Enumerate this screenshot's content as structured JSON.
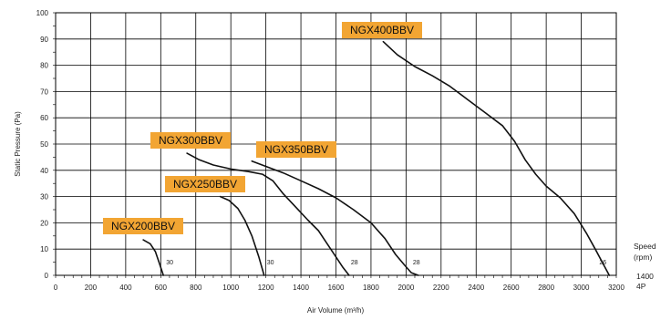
{
  "chart_data": {
    "type": "line",
    "title": "",
    "xlabel": "Air Volume (m³/h)",
    "ylabel": "Static Pressure (Pa)",
    "xlim": [
      0,
      3200
    ],
    "ylim": [
      0,
      100
    ],
    "x_ticks": [
      0,
      200,
      400,
      600,
      800,
      1000,
      1200,
      1400,
      1600,
      1800,
      2000,
      2200,
      2400,
      2600,
      2800,
      3000,
      3200
    ],
    "y_ticks": [
      0,
      10,
      20,
      30,
      40,
      50,
      60,
      70,
      80,
      90,
      100
    ],
    "grid": true,
    "label_color": "#F2A533",
    "line_color": "#111111",
    "series": [
      {
        "name": "NGX200BBV",
        "speed_label": "30",
        "x": [
          500,
          540,
          570,
          590,
          605,
          615
        ],
        "y": [
          13.5,
          12,
          9,
          5,
          2,
          0
        ]
      },
      {
        "name": "NGX250BBV",
        "speed_label": "30",
        "x": [
          940,
          990,
          1040,
          1080,
          1120,
          1160,
          1190
        ],
        "y": [
          30,
          28.5,
          25.5,
          21,
          15,
          7,
          0
        ]
      },
      {
        "name": "NGX300BBV",
        "speed_label": "28",
        "x": [
          750,
          820,
          900,
          1000,
          1100,
          1180,
          1240,
          1300,
          1370,
          1440,
          1500,
          1550,
          1600,
          1640,
          1675
        ],
        "y": [
          46.5,
          44,
          42,
          40.5,
          39.5,
          38.5,
          36,
          31,
          26,
          21,
          17,
          12,
          7,
          3,
          0
        ]
      },
      {
        "name": "NGX350BBV",
        "speed_label": "28",
        "x": [
          1120,
          1200,
          1300,
          1400,
          1500,
          1600,
          1700,
          1800,
          1880,
          1940,
          1990,
          2030,
          2070
        ],
        "y": [
          43.5,
          41.5,
          39,
          36,
          33,
          29.5,
          25,
          20,
          14,
          8,
          4,
          1,
          0
        ]
      },
      {
        "name": "NGX400BBV",
        "speed_label": "26",
        "x": [
          1870,
          1950,
          2050,
          2150,
          2250,
          2350,
          2450,
          2550,
          2620,
          2680,
          2740,
          2800,
          2880,
          2960,
          3030,
          3080,
          3120,
          3160
        ],
        "y": [
          89,
          84,
          79.5,
          76,
          72,
          67,
          62,
          57,
          51,
          44,
          38.5,
          34,
          29.5,
          23.5,
          16,
          10,
          5,
          0
        ]
      }
    ]
  },
  "legend_side": {
    "speed_title": "Speed",
    "speed_unit": "(rpm)",
    "rpm_value": "1400",
    "pole_label": "4P"
  }
}
